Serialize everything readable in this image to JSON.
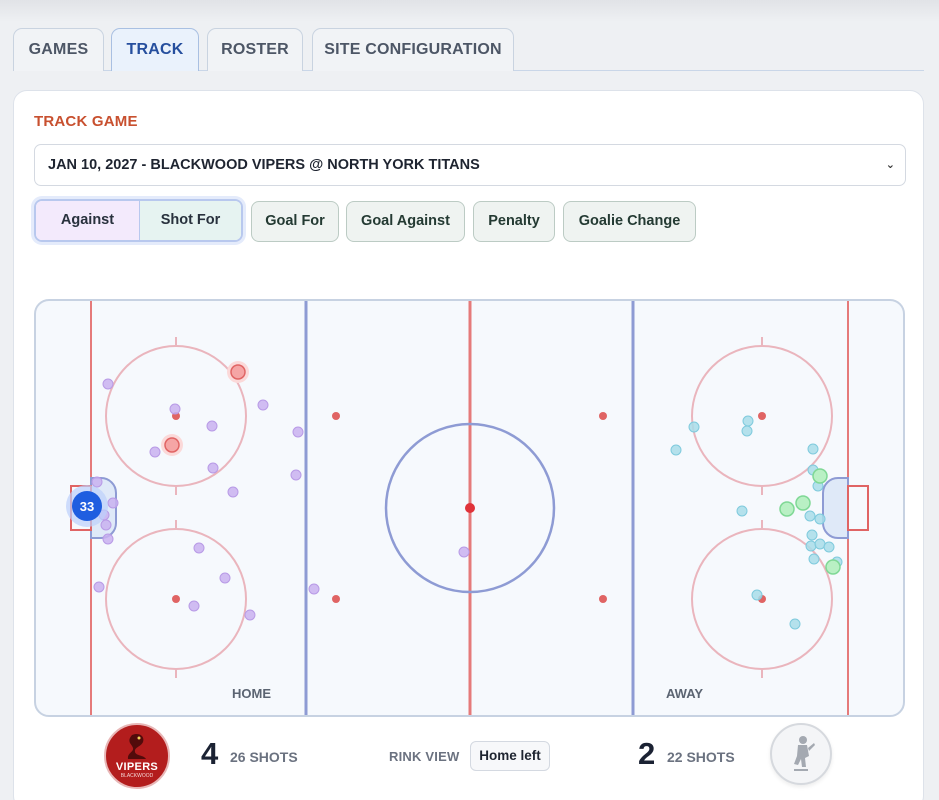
{
  "tabs": [
    {
      "label": "GAMES"
    },
    {
      "label": "TRACK",
      "active": true
    },
    {
      "label": "ROSTER"
    },
    {
      "label": "SITE CONFIGURATION"
    }
  ],
  "track": {
    "title": "TRACK GAME",
    "selected_game": "JAN 10, 2027 - BLACKWOOD VIPERS @ NORTH YORK TITANS",
    "segmented": {
      "left_label": "Against",
      "right_label": "Shot For"
    },
    "buttons": [
      "Goal For",
      "Goal Against",
      "Penalty",
      "Goalie Change"
    ]
  },
  "rink": {
    "home_label": "HOME",
    "away_label": "AWAY",
    "goalie_marker": "33",
    "colors": {
      "ice": "#f6f9fd",
      "red_line": "#e57a7a",
      "blue_line": "#8e9bd4",
      "circle": "#eab5bd",
      "home_shot": "#c9b2f0",
      "home_goal": "#f08a8a",
      "away_shot": "#9fd9e8",
      "away_goal": "#a6ecb4",
      "goalie": "#1f5ee0"
    }
  },
  "summary": {
    "home_team": "VIPERS",
    "home_team_sub": "BLACKWOOD",
    "home_score": "4",
    "home_shots": "26 SHOTS",
    "rink_view_label": "RINK VIEW",
    "rink_view_value": "Home left",
    "away_score": "2",
    "away_shots": "22 SHOTS"
  }
}
